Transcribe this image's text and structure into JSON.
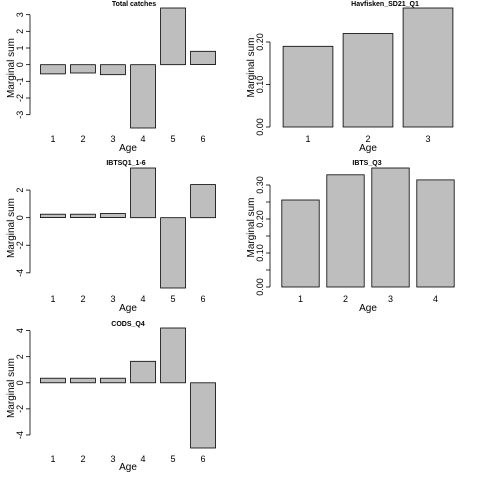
{
  "chart_data": [
    {
      "type": "bar",
      "title": "Total catches",
      "xlabel": "Age",
      "ylabel": "Marginal sum",
      "categories": [
        "1",
        "2",
        "3",
        "4",
        "5",
        "6"
      ],
      "values": [
        -0.55,
        -0.5,
        -0.6,
        -3.8,
        3.4,
        0.8
      ],
      "ylim": [
        -3.8,
        3.4
      ],
      "yticks": [
        "-3",
        "-2",
        "-1",
        "0",
        "1",
        "2",
        "3"
      ],
      "grid": false,
      "bar_color": "#bebebe"
    },
    {
      "type": "bar",
      "title": "Havfisken_SD21_Q1",
      "xlabel": "Age",
      "ylabel": "Marginal sum",
      "categories": [
        "1",
        "2",
        "3"
      ],
      "values": [
        0.19,
        0.22,
        0.28
      ],
      "ylim": [
        0,
        0.28
      ],
      "yticks": [
        "0.00",
        "0.10",
        "0.20"
      ],
      "grid": false,
      "bar_color": "#bebebe"
    },
    {
      "type": "bar",
      "title": "IBTSQ1_1-6",
      "xlabel": "Age",
      "ylabel": "Marginal sum",
      "categories": [
        "1",
        "2",
        "3",
        "4",
        "5",
        "6"
      ],
      "values": [
        0.25,
        0.25,
        0.3,
        3.6,
        -5.1,
        2.4
      ],
      "ylim": [
        -5.1,
        3.6
      ],
      "yticks": [
        "-4",
        "-2",
        "0",
        "2"
      ],
      "grid": false,
      "bar_color": "#bebebe"
    },
    {
      "type": "bar",
      "title": "IBTS_Q3",
      "xlabel": "Age",
      "ylabel": "Marginal sum",
      "categories": [
        "1",
        "2",
        "3",
        "4"
      ],
      "values": [
        0.256,
        0.33,
        0.35,
        0.315
      ],
      "ylim": [
        0,
        0.35
      ],
      "yticks": [
        "0.00",
        "0.10",
        "0.20",
        "0.30"
      ],
      "minor_yticks": [
        "0.05",
        "0.15",
        "0.25"
      ],
      "grid": false,
      "bar_color": "#bebebe"
    },
    {
      "type": "bar",
      "title": "CODS_Q4",
      "xlabel": "Age",
      "ylabel": "Marginal sum",
      "categories": [
        "1",
        "2",
        "3",
        "4",
        "5",
        "6"
      ],
      "values": [
        0.35,
        0.35,
        0.35,
        1.65,
        4.2,
        -5.0
      ],
      "ylim": [
        -5.0,
        4.2
      ],
      "yticks": [
        "-4",
        "-2",
        "0",
        "2",
        "4"
      ],
      "grid": false,
      "bar_color": "#bebebe"
    }
  ]
}
